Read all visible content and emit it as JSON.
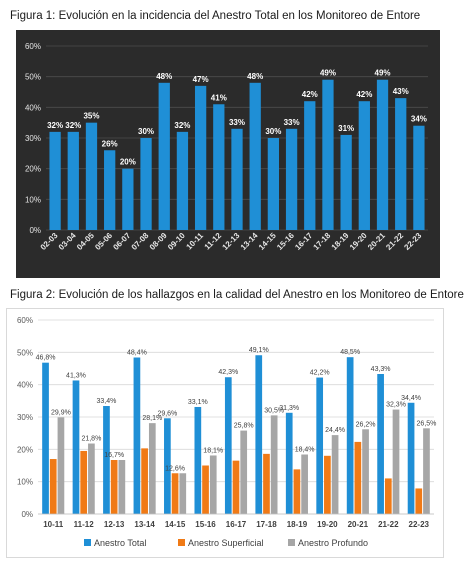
{
  "captions": {
    "fig1": "Figura 1: Evolución en la incidencia del Anestro Total en los Monitoreo de Entore",
    "fig2": "Figura 2: Evolución de los hallazgos en la calidad del Anestro en los Monitoreo de Entore"
  },
  "colors": {
    "chart1_bg": "#2b2b2b",
    "chart1_bar": "#1f8fd6",
    "total": "#1f8fd6",
    "superficial": "#f07a16",
    "profundo": "#a6a6a6"
  },
  "chart_data": [
    {
      "type": "bar",
      "title": "Figura 1: Evolución en la incidencia del Anestro Total en los Monitoreo de Entore",
      "categories": [
        "02-03",
        "03-04",
        "04-05",
        "05-06",
        "06-07",
        "07-08",
        "08-09",
        "09-10",
        "10-11",
        "11-12",
        "12-13",
        "13-14",
        "14-15",
        "15-16",
        "16-17",
        "17-18",
        "18-19",
        "19-20",
        "20-21",
        "21-22",
        "22-23"
      ],
      "values": [
        32,
        32,
        35,
        26,
        20,
        30,
        48,
        32,
        47,
        41,
        33,
        48,
        30,
        33,
        42,
        49,
        31,
        42,
        49,
        43,
        34
      ],
      "labels": [
        "32%",
        "32%",
        "35%",
        "26%",
        "20%",
        "30%",
        "48%",
        "32%",
        "47%",
        "41%",
        "33%",
        "48%",
        "30%",
        "33%",
        "42%",
        "49%",
        "31%",
        "42%",
        "49%",
        "43%",
        "34%"
      ],
      "ylim": [
        0,
        60
      ],
      "yticks": [
        "0%",
        "10%",
        "20%",
        "30%",
        "40%",
        "50%",
        "60%"
      ],
      "grid": true,
      "xlabel": "",
      "ylabel": ""
    },
    {
      "type": "bar",
      "title": "Figura 2: Evolución de los hallazgos en la calidad del Anestro en los Monitoreo de Entore",
      "categories": [
        "10-11",
        "11-12",
        "12-13",
        "13-14",
        "14-15",
        "15-16",
        "16-17",
        "17-18",
        "18-19",
        "19-20",
        "20-21",
        "21-22",
        "22-23"
      ],
      "series": [
        {
          "name": "Anestro Total",
          "values": [
            46.8,
            41.3,
            33.4,
            48.4,
            29.6,
            33.1,
            42.3,
            49.1,
            31.3,
            42.2,
            48.5,
            43.3,
            34.4
          ],
          "labels": [
            "46,8%",
            "41,3%",
            "33,4%",
            "48,4%",
            "29,6%",
            "33,1%",
            "42,3%",
            "49,1%",
            "31,3%",
            "42,2%",
            "48,5%",
            "43,3%",
            "34,4%"
          ]
        },
        {
          "name": "Anestro Superficial",
          "values": [
            17,
            19.5,
            16.7,
            20.3,
            12.6,
            15,
            16.5,
            18.6,
            13.8,
            18,
            22.3,
            11,
            7.9
          ],
          "labels": [
            "",
            "",
            "16,7%",
            "",
            "12,6%",
            "",
            "",
            "",
            "",
            "",
            "",
            "",
            ""
          ]
        },
        {
          "name": "Anestro Profundo",
          "values": [
            29.9,
            21.8,
            16.7,
            28.1,
            12.6,
            18.1,
            25.8,
            30.5,
            18.4,
            24.4,
            26.2,
            32.3,
            26.5
          ],
          "labels": [
            "29,9%",
            "21,8%",
            "",
            "28,1%",
            "",
            "18,1%",
            "25,8%",
            "30,5%",
            "18,4%",
            "24,4%",
            "26,2%",
            "32,3%",
            "26,5%"
          ]
        }
      ],
      "ylim": [
        0,
        60
      ],
      "yticks": [
        "0%",
        "10%",
        "20%",
        "30%",
        "40%",
        "50%",
        "60%"
      ],
      "grid": true,
      "legend_position": "bottom",
      "xlabel": "",
      "ylabel": ""
    }
  ]
}
